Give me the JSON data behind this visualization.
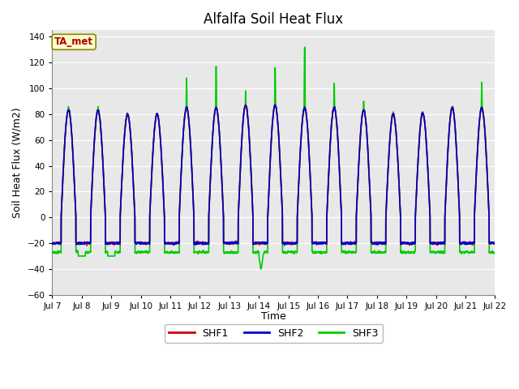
{
  "title": "Alfalfa Soil Heat Flux",
  "ylabel": "Soil Heat Flux (W/m2)",
  "xlabel": "Time",
  "ylim": [
    -60,
    145
  ],
  "yticks": [
    -60,
    -40,
    -20,
    0,
    20,
    40,
    60,
    80,
    100,
    120,
    140
  ],
  "xtick_labels": [
    "Jul 7",
    "Jul 8",
    "Jul 9",
    "Jul 10",
    "Jul 11",
    "Jul 12",
    "Jul 13",
    "Jul 14",
    "Jul 15",
    "Jul 16",
    "Jul 17",
    "Jul 18",
    "Jul 19",
    "Jul 20",
    "Jul 21",
    "Jul 22"
  ],
  "shf1_color": "#cc0000",
  "shf2_color": "#0000cc",
  "shf3_color": "#00cc00",
  "fig_bg_color": "#ffffff",
  "plot_bg_color": "#e8e8e8",
  "ta_met_label": "TA_met",
  "ta_met_text_color": "#aa0000",
  "ta_met_face": "#ffffcc",
  "ta_met_edge": "#888800",
  "legend_labels": [
    "SHF1",
    "SHF2",
    "SHF3"
  ],
  "line_width": 1.2,
  "title_fontsize": 12
}
